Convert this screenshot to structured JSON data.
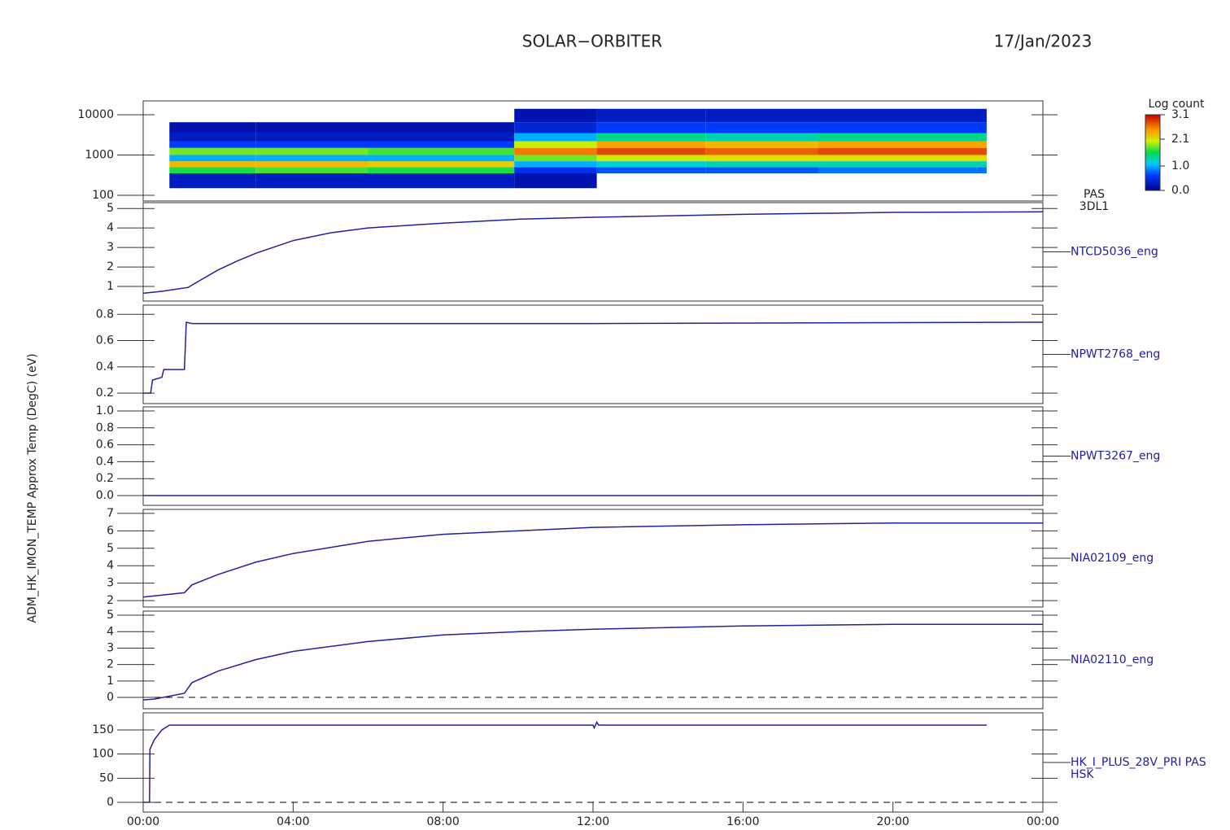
{
  "chart_data": [
    {
      "type": "heatmap",
      "title": "SOLAR−ORBITER",
      "subtitle": "17/Jan/2023",
      "ylabel": "ADM_HK_IMON_TEMP Approx Temp (DegC) (eV)",
      "annotations": [
        "PAS",
        "3DL1"
      ],
      "log": true,
      "ylim": [
        72,
        22000
      ],
      "yticks": [
        100,
        1000,
        10000
      ],
      "x_edges": [
        0.7,
        3,
        6,
        9.9,
        12.1,
        15,
        18,
        22.5
      ],
      "y_edges": [
        150,
        350,
        500,
        700,
        1000,
        1500,
        2200,
        3500,
        6500,
        14000
      ],
      "values": [
        [
          0.3,
          1.6,
          2.3,
          1.0,
          1.8,
          0.6,
          0.3,
          0.2,
          null
        ],
        [
          0.3,
          1.7,
          2.3,
          1.0,
          1.8,
          0.6,
          0.3,
          0.2,
          null
        ],
        [
          0.3,
          1.6,
          2.2,
          1.0,
          1.7,
          0.6,
          0.3,
          0.2,
          null
        ],
        [
          0.2,
          0.5,
          1.0,
          1.8,
          2.6,
          2.0,
          1.0,
          0.4,
          0.2
        ],
        [
          null,
          0.7,
          1.2,
          2.0,
          2.8,
          2.4,
          1.4,
          0.6,
          0.3
        ],
        [
          null,
          0.7,
          1.3,
          2.1,
          2.7,
          2.3,
          1.3,
          0.6,
          0.3
        ],
        [
          null,
          0.8,
          1.3,
          2.1,
          2.8,
          2.4,
          1.4,
          0.6,
          0.3
        ]
      ],
      "colorbar": {
        "label": "Log count",
        "lim": [
          0,
          3.1
        ],
        "ticks": [
          {
            "value": 0,
            "label": "0.0"
          },
          {
            "value": 1,
            "label": "1.0"
          },
          2.1,
          3.1
        ]
      }
    },
    {
      "type": "line",
      "label": "NTCD5036_eng",
      "color": "#2020a0",
      "ylim": [
        0.25,
        5.3
      ],
      "yticks": [
        1,
        2,
        3,
        4,
        5
      ],
      "x": [
        0,
        0.5,
        1.2,
        1.6,
        2,
        2.5,
        3,
        4,
        5,
        6,
        8,
        10,
        12,
        16,
        20,
        24
      ],
      "values": [
        0.65,
        0.75,
        0.95,
        1.4,
        1.85,
        2.3,
        2.7,
        3.35,
        3.75,
        4.0,
        4.25,
        4.45,
        4.55,
        4.7,
        4.8,
        4.83
      ]
    },
    {
      "type": "line",
      "label": "NPWT2768_eng",
      "color": "#2020a0",
      "ylim": [
        0.12,
        0.87
      ],
      "yticks": [
        0.2,
        0.4,
        0.6,
        0.8
      ],
      "x": [
        0,
        0.2,
        0.25,
        0.5,
        0.55,
        1.1,
        1.15,
        1.3,
        12,
        24
      ],
      "values": [
        0.2,
        0.2,
        0.3,
        0.32,
        0.38,
        0.38,
        0.74,
        0.73,
        0.73,
        0.74
      ]
    },
    {
      "type": "line",
      "label": "NPWT3267_eng",
      "color": "#2020a0",
      "ylim": [
        -0.115,
        1.048
      ],
      "yticks": [
        {
          "value": 0,
          "label": "0.0"
        },
        0.2,
        0.4,
        0.6,
        0.8,
        {
          "value": 1,
          "label": "1.0"
        }
      ],
      "x": [
        0,
        24
      ],
      "values": [
        0,
        0
      ]
    },
    {
      "type": "line",
      "label": "NIA02109_eng",
      "color": "#2020a0",
      "ylim": [
        1.63,
        7.23
      ],
      "yticks": [
        2,
        3,
        4,
        5,
        6,
        7
      ],
      "x": [
        0,
        1.1,
        1.3,
        2,
        3,
        4,
        6,
        8,
        10,
        12,
        16,
        20,
        24
      ],
      "values": [
        2.2,
        2.45,
        2.9,
        3.5,
        4.2,
        4.7,
        5.4,
        5.8,
        6.0,
        6.2,
        6.35,
        6.45,
        6.45
      ]
    },
    {
      "type": "line",
      "label": "NIA02110_eng",
      "color": "#2020a0",
      "ylim": [
        -0.69,
        5.25
      ],
      "yticks": [
        0,
        1,
        2,
        3,
        4,
        5
      ],
      "zero_line": true,
      "x": [
        0,
        0.3,
        1.1,
        1.3,
        2,
        3,
        4,
        6,
        8,
        10,
        12,
        16,
        20,
        24
      ],
      "values": [
        -0.15,
        -0.1,
        0.25,
        0.9,
        1.6,
        2.3,
        2.8,
        3.4,
        3.8,
        4.0,
        4.15,
        4.35,
        4.45,
        4.45
      ]
    },
    {
      "type": "line",
      "label": "HK_I_PLUS_28V_PRI PAS",
      "label2": "HSK",
      "color": "#2020a0",
      "ylim": [
        -20.2,
        185.4
      ],
      "yticks": [
        0,
        50,
        100,
        150
      ],
      "zero_line": true,
      "x": [
        0,
        0.17,
        0.18,
        0.3,
        0.5,
        0.7,
        12,
        12.03,
        12.1,
        12.15,
        22.5
      ],
      "values": [
        0,
        0,
        110,
        130,
        150,
        160,
        160,
        154,
        166,
        160,
        160
      ],
      "xlim": [
        0,
        24
      ],
      "xticks": [
        {
          "value": 0,
          "label": "00:00"
        },
        {
          "value": 4,
          "label": "04:00"
        },
        {
          "value": 8,
          "label": "08:00"
        },
        {
          "value": 12,
          "label": "12:00"
        },
        {
          "value": 16,
          "label": "16:00"
        },
        {
          "value": 20,
          "label": "20:00"
        },
        {
          "value": 24,
          "label": "00:00"
        }
      ]
    }
  ]
}
